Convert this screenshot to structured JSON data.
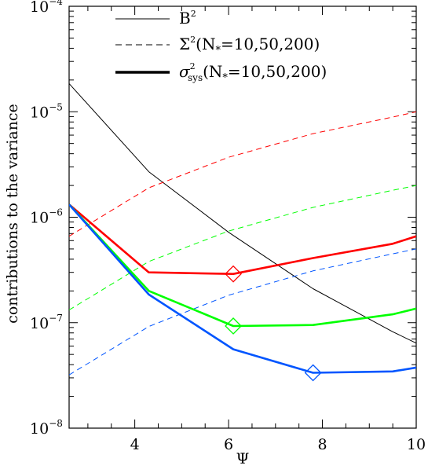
{
  "chart_data": {
    "type": "line",
    "title": "",
    "xlabel": "Ψ",
    "ylabel": "contributions to the variance",
    "xlim": [
      2.6,
      10.0
    ],
    "ylim": [
      1e-08,
      0.0001
    ],
    "yscale": "log",
    "grid": false,
    "legend_position": "top",
    "x_ticks": [
      {
        "value": 4,
        "label": "4"
      },
      {
        "value": 6,
        "label": "6"
      },
      {
        "value": 8,
        "label": "8"
      },
      {
        "value": 10,
        "label": "10"
      }
    ],
    "y_ticks": [
      {
        "value": 1e-08,
        "base": "10",
        "exp": "−8"
      },
      {
        "value": 1e-07,
        "base": "10",
        "exp": "−7"
      },
      {
        "value": 1e-06,
        "base": "10",
        "exp": "−6"
      },
      {
        "value": 1e-05,
        "base": "10",
        "exp": "−5"
      },
      {
        "value": 0.0001,
        "base": "10",
        "exp": "−4"
      }
    ],
    "legend": {
      "b2": {
        "base": "B",
        "sup": "2"
      },
      "sigma2": {
        "base": "Σ",
        "sup": "2",
        "rest": "(N",
        "sub": "*",
        "tail": "=10,50,200)"
      },
      "sigmasys": {
        "base": "σ",
        "sup": "2",
        "sub": "sys",
        "rest": "(N",
        "sub2": "*",
        "tail": "=10,50,200)"
      }
    },
    "series": [
      {
        "id": "b2",
        "color": "#000000",
        "style": "solid",
        "weight": "thin",
        "x": [
          2.6,
          4.3,
          6.0,
          7.8,
          9.5,
          10.0
        ],
        "y": [
          1.85e-05,
          2.7e-06,
          7.2e-07,
          2.1e-07,
          8.2e-08,
          6.4e-08
        ]
      },
      {
        "id": "sigma2-10",
        "color": "#ff0000",
        "style": "dashed",
        "weight": "thin",
        "x": [
          2.6,
          4.3,
          6.0,
          7.8,
          9.5,
          10.0
        ],
        "y": [
          6.6e-07,
          1.9e-06,
          3.7e-06,
          6.2e-06,
          8.9e-06,
          1e-05
        ]
      },
      {
        "id": "sigma2-50",
        "color": "#00ff00",
        "style": "dashed",
        "weight": "thin",
        "x": [
          2.6,
          4.3,
          6.0,
          7.8,
          9.5,
          10.0
        ],
        "y": [
          1.32e-07,
          3.8e-07,
          7.4e-07,
          1.24e-06,
          1.8e-06,
          2e-06
        ]
      },
      {
        "id": "sigma2-200",
        "color": "#0055ff",
        "style": "dashed",
        "weight": "thin",
        "x": [
          2.6,
          4.3,
          6.0,
          7.8,
          9.5,
          10.0
        ],
        "y": [
          3.2e-08,
          9.2e-08,
          1.82e-07,
          3.1e-07,
          4.5e-07,
          5e-07
        ]
      },
      {
        "id": "sigmasys-10",
        "color": "#ff0000",
        "style": "solid",
        "weight": "thick",
        "x": [
          2.6,
          4.3,
          6.1,
          7.8,
          9.5,
          10.0
        ],
        "y": [
          1.32e-06,
          3e-07,
          2.9e-07,
          4.1e-07,
          5.6e-07,
          6.6e-07
        ]
      },
      {
        "id": "sigmasys-50",
        "color": "#00ff00",
        "style": "solid",
        "weight": "thick",
        "x": [
          2.6,
          4.3,
          6.1,
          7.8,
          9.5,
          10.0
        ],
        "y": [
          1.32e-06,
          2e-07,
          9.3e-08,
          9.5e-08,
          1.2e-07,
          1.36e-07
        ]
      },
      {
        "id": "sigmasys-200",
        "color": "#0055ff",
        "style": "solid",
        "weight": "thick",
        "x": [
          2.6,
          4.3,
          6.1,
          7.8,
          9.5,
          10.0
        ],
        "y": [
          1.32e-06,
          1.85e-07,
          5.6e-08,
          3.35e-08,
          3.45e-08,
          3.75e-08
        ]
      }
    ],
    "markers": [
      {
        "series": "sigmasys-10",
        "shape": "diamond",
        "color": "#ff0000",
        "x": 6.1,
        "y": 2.9e-07
      },
      {
        "series": "sigmasys-50",
        "shape": "diamond",
        "color": "#00ff00",
        "x": 6.1,
        "y": 9.3e-08
      },
      {
        "series": "sigmasys-200",
        "shape": "diamond",
        "color": "#0055ff",
        "x": 7.8,
        "y": 3.35e-08
      }
    ]
  }
}
